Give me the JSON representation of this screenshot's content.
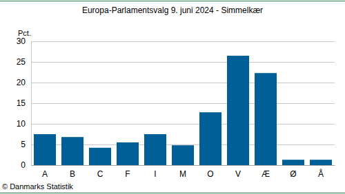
{
  "chart_data": {
    "type": "bar",
    "title": "Europa-Parlamentsvalg 9. juni 2024 - Simmelkær",
    "y_label": "Pct.",
    "source": "© Danmarks Statistik",
    "categories": [
      "A",
      "B",
      "C",
      "F",
      "I",
      "M",
      "O",
      "V",
      "Æ",
      "Ø",
      "Å"
    ],
    "values": [
      7.5,
      6.8,
      4.2,
      5.5,
      7.5,
      4.8,
      12.8,
      26.5,
      22.3,
      1.3,
      1.3
    ],
    "color": "#005f96",
    "ylim": [
      0,
      30
    ],
    "yticks": [
      0,
      5,
      10,
      15,
      20,
      25,
      30
    ],
    "grid": true
  }
}
